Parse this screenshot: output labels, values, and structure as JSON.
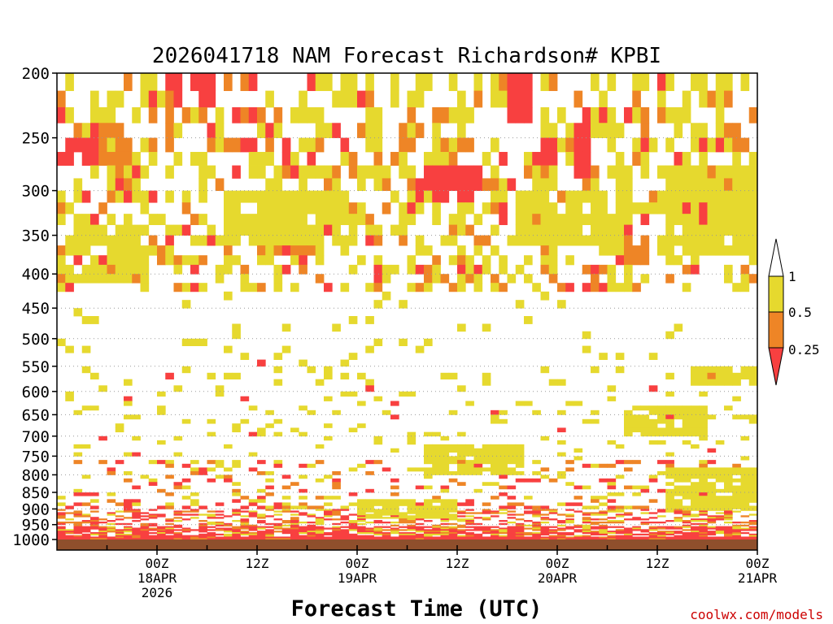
{
  "chart_data": {
    "type": "heatmap",
    "title": "2026041718 NAM Forecast Richardson# KPBI",
    "xlabel": "Forecast Time (UTC)",
    "ylabel": "",
    "y_axis": {
      "unit": "hPa",
      "scale": "log",
      "range": [
        1000,
        200
      ],
      "ticks": [
        "200",
        "250",
        "300",
        "350",
        "400",
        "450",
        "500",
        "550",
        "600",
        "650",
        "700",
        "750",
        "800",
        "850",
        "900",
        "950",
        "1000"
      ]
    },
    "x_axis": {
      "unit": "forecast hour",
      "range": [
        -6,
        78
      ],
      "ticks": [
        {
          "hour": 6,
          "lines": [
            "00Z",
            "18APR",
            "2026"
          ]
        },
        {
          "hour": 18,
          "lines": [
            "12Z"
          ]
        },
        {
          "hour": 30,
          "lines": [
            "00Z",
            "19APR"
          ]
        },
        {
          "hour": 42,
          "lines": [
            "12Z"
          ]
        },
        {
          "hour": 54,
          "lines": [
            "00Z",
            "20APR"
          ]
        },
        {
          "hour": 66,
          "lines": [
            "12Z"
          ]
        },
        {
          "hour": 78,
          "lines": [
            "00Z",
            "21APR"
          ]
        }
      ]
    },
    "grid": "dotted horizontal at tick levels",
    "legend": {
      "placement": "right",
      "bins": [
        {
          "range": "0.5-1",
          "color": "#e6d92e"
        },
        {
          "range": "0.25-0.5",
          "color": "#ee8526"
        },
        {
          "range": "<0.25",
          "color": "#f84040"
        }
      ],
      "labels": [
        "1",
        "0.5",
        "0.25"
      ]
    },
    "ground_color": "#8f4f2c",
    "cell_size": {
      "hours": 1,
      "pressure_levels": "model"
    },
    "regions": [
      {
        "level": "low",
        "h0": 7,
        "h1": 13,
        "p0": 220,
        "p1": 200
      },
      {
        "level": "low",
        "h0": -6,
        "h1": -1,
        "p0": 270,
        "p1": 240
      },
      {
        "level": "mid",
        "h0": -1,
        "h1": 3,
        "p0": 265,
        "p1": 230
      },
      {
        "level": "mid",
        "h0": 0,
        "h1": 4,
        "p0": 410,
        "p1": 380
      },
      {
        "level": "hi",
        "h0": -3,
        "h1": 5,
        "p0": 400,
        "p1": 330
      },
      {
        "level": "low",
        "h0": 25,
        "h1": 28,
        "p0": 345,
        "p1": 325
      },
      {
        "level": "low",
        "h0": 37,
        "h1": 45,
        "p0": 305,
        "p1": 265
      },
      {
        "level": "mid",
        "h0": 35,
        "h1": 37,
        "p0": 255,
        "p1": 240
      },
      {
        "level": "mid",
        "h0": 40,
        "h1": 44,
        "p0": 260,
        "p1": 245
      },
      {
        "level": "low",
        "h0": 48,
        "h1": 51,
        "p0": 230,
        "p1": 200
      },
      {
        "level": "low",
        "h0": 52,
        "h1": 54,
        "p0": 265,
        "p1": 240
      },
      {
        "level": "hi",
        "h0": 52,
        "h1": 61,
        "p0": 240,
        "p1": 215
      },
      {
        "level": "low",
        "h0": 56,
        "h1": 58,
        "p0": 275,
        "p1": 225
      },
      {
        "level": "low",
        "h0": 69,
        "h1": 75,
        "p0": 345,
        "p1": 300
      },
      {
        "level": "mid",
        "h0": 68,
        "h1": 73,
        "p0": 305,
        "p1": 270
      },
      {
        "level": "hi",
        "h0": 66,
        "h1": 79,
        "p0": 370,
        "p1": 275
      },
      {
        "level": "hi",
        "h0": 49,
        "h1": 63,
        "p0": 360,
        "p1": 300
      },
      {
        "level": "hi",
        "h0": 14,
        "h1": 30,
        "p0": 360,
        "p1": 290
      },
      {
        "level": "mid",
        "h0": 62,
        "h1": 65,
        "p0": 375,
        "p1": 345
      },
      {
        "level": "low",
        "h0": 67,
        "h1": 69,
        "p0": 652,
        "p1": 640
      },
      {
        "level": "hi",
        "h0": 62,
        "h1": 72,
        "p0": 690,
        "p1": 630
      },
      {
        "level": "mid",
        "h0": 72,
        "h1": 75,
        "p0": 565,
        "p1": 545
      },
      {
        "level": "hi",
        "h0": 70,
        "h1": 78,
        "p0": 580,
        "p1": 540
      },
      {
        "level": "hi",
        "h0": 38,
        "h1": 50,
        "p0": 790,
        "p1": 720
      },
      {
        "level": "hi",
        "h0": 67,
        "h1": 78,
        "p0": 900,
        "p1": 780
      },
      {
        "level": "hi",
        "h0": 30,
        "h1": 42,
        "p0": 925,
        "p1": 870
      }
    ]
  },
  "watermark": "coolwx.com/models"
}
